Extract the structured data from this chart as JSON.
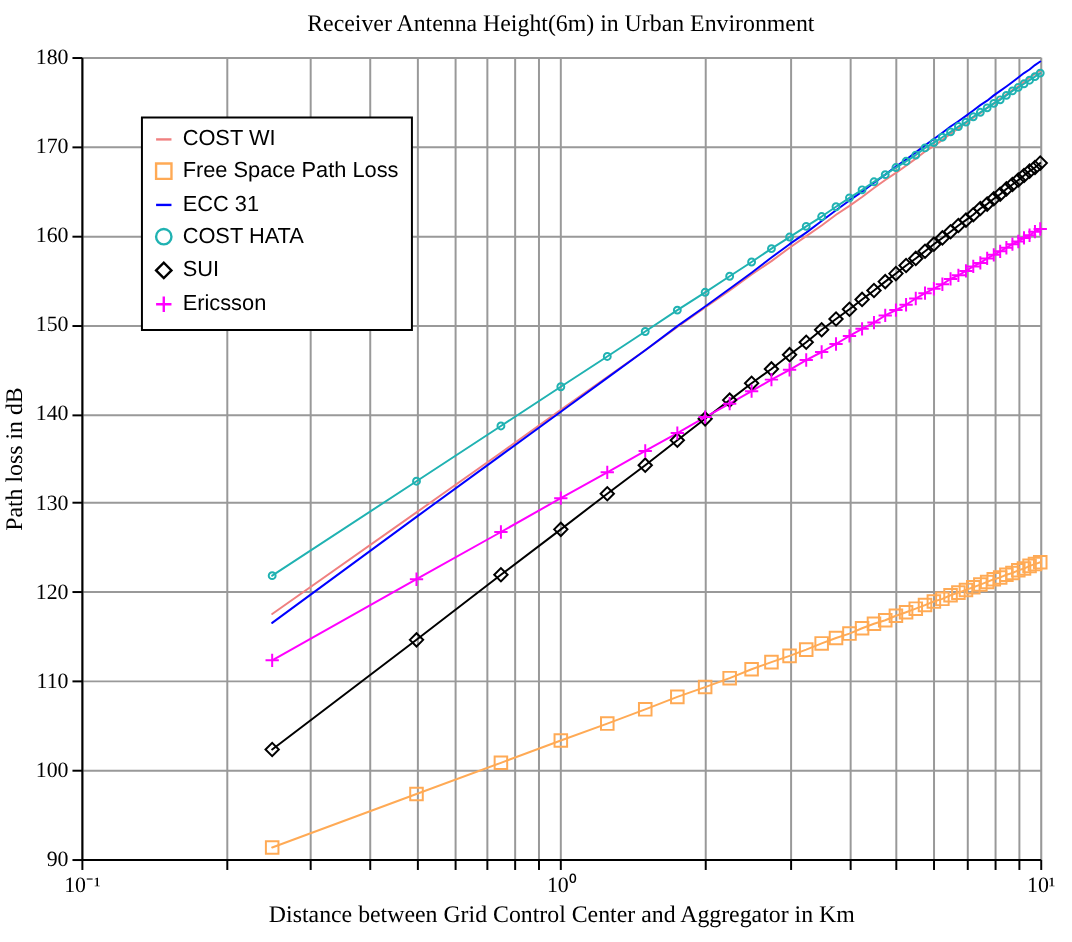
{
  "chart_data": {
    "type": "line",
    "title": "Receiver Antenna Height(6m) in Urban Environment",
    "xlabel": "Distance between Grid Control Center and Aggregator in Km",
    "ylabel": "Path loss in dB",
    "x": [
      0.25,
      0.5,
      0.75,
      1,
      1.25,
      1.5,
      1.75,
      2,
      2.25,
      2.5,
      2.75,
      3,
      3.25,
      3.5,
      3.75,
      4,
      4.25,
      4.5,
      4.75,
      5,
      5.25,
      5.5,
      5.75,
      6,
      6.25,
      6.5,
      6.75,
      7,
      7.25,
      7.5,
      7.75,
      8,
      8.25,
      8.5,
      8.75,
      9,
      9.25,
      9.5,
      9.75,
      10
    ],
    "series": [
      {
        "name": "COST WI",
        "color": "#f08080",
        "marker": "none",
        "values": [
          117.5,
          128.9,
          135.6,
          140.4,
          144.1,
          147.1,
          149.7,
          151.9,
          153.8,
          155.6,
          157.1,
          158.6,
          159.9,
          161.1,
          162.3,
          163.3,
          164.3,
          165.3,
          166.2,
          167.0,
          167.8,
          168.6,
          169.4,
          170.0,
          170.7,
          171.4,
          172.0,
          172.6,
          173.2,
          173.7,
          174.3,
          174.8,
          175.3,
          175.8,
          176.3,
          176.7,
          177.2,
          177.7,
          178.1,
          178.5
        ]
      },
      {
        "name": "Free Space Path Loss",
        "color": "#ffaa55",
        "marker": "square",
        "values": [
          91.3,
          97.3,
          100.8,
          103.3,
          105.2,
          106.8,
          108.2,
          109.3,
          110.3,
          111.3,
          112.1,
          112.8,
          113.5,
          114.2,
          114.8,
          115.3,
          115.9,
          116.4,
          116.8,
          117.3,
          117.7,
          118.1,
          118.5,
          118.9,
          119.2,
          119.6,
          119.9,
          120.2,
          120.5,
          120.8,
          121.1,
          121.4,
          121.6,
          121.9,
          122.1,
          122.4,
          122.6,
          122.9,
          123.1,
          123.3
        ]
      },
      {
        "name": "ECC 31",
        "color": "#0000ff",
        "marker": "none",
        "values": [
          116.5,
          128.4,
          135.3,
          140.2,
          144.0,
          147.1,
          149.8,
          152.0,
          154.0,
          155.8,
          157.5,
          159.0,
          160.3,
          161.6,
          162.8,
          163.9,
          164.9,
          165.9,
          166.8,
          167.7,
          168.5,
          169.3,
          170.1,
          170.8,
          171.5,
          172.2,
          172.8,
          173.4,
          174.0,
          174.6,
          175.1,
          175.7,
          176.2,
          176.7,
          177.2,
          177.7,
          178.2,
          178.6,
          179.1,
          179.5
        ]
      },
      {
        "name": "COST HATA",
        "color": "#20b2b2",
        "marker": "circle",
        "values": [
          121.8,
          132.4,
          138.6,
          143.0,
          146.4,
          149.2,
          151.6,
          153.6,
          155.4,
          157.0,
          158.5,
          159.8,
          161.0,
          162.1,
          163.2,
          164.2,
          165.1,
          166.0,
          166.8,
          167.6,
          168.3,
          169.0,
          169.8,
          170.4,
          171.0,
          171.6,
          172.2,
          172.7,
          173.3,
          173.8,
          174.3,
          174.8,
          175.2,
          175.7,
          176.2,
          176.6,
          177.0,
          177.4,
          177.8,
          178.2
        ]
      },
      {
        "name": "SUI",
        "color": "#000000",
        "marker": "diamond",
        "values": [
          102.3,
          114.6,
          121.9,
          127.0,
          131.0,
          134.2,
          137.0,
          139.4,
          141.5,
          143.4,
          145.0,
          146.6,
          148.0,
          149.4,
          150.6,
          151.7,
          152.8,
          153.8,
          154.8,
          155.7,
          156.6,
          157.4,
          158.2,
          159.0,
          159.7,
          160.4,
          161.1,
          161.7,
          162.3,
          163.0,
          163.5,
          164.1,
          164.6,
          165.2,
          165.7,
          166.2,
          166.7,
          167.2,
          167.6,
          168.1
        ]
      },
      {
        "name": "Ericsson",
        "color": "#ff00ff",
        "marker": "cross",
        "values": [
          112.3,
          121.4,
          126.7,
          130.5,
          133.4,
          135.8,
          137.8,
          139.6,
          141.1,
          142.5,
          143.8,
          144.9,
          146.0,
          146.9,
          147.8,
          148.7,
          149.5,
          150.2,
          151.0,
          151.6,
          152.2,
          152.9,
          153.5,
          154.0,
          154.5,
          155.1,
          155.5,
          156.0,
          156.5,
          156.9,
          157.4,
          157.8,
          158.2,
          158.6,
          159.0,
          159.3,
          159.7,
          160.0,
          160.4,
          160.7
        ]
      }
    ],
    "log": "x",
    "xlim": [
      0.1,
      10
    ],
    "xticks": [
      {
        "value": 0.1,
        "label": "10⁻¹"
      },
      {
        "value": 0.2,
        "label": null
      },
      {
        "value": 0.3,
        "label": null
      },
      {
        "value": 0.4,
        "label": null
      },
      {
        "value": 0.5,
        "label": null
      },
      {
        "value": 0.6,
        "label": null
      },
      {
        "value": 0.7,
        "label": null
      },
      {
        "value": 0.8,
        "label": null
      },
      {
        "value": 0.9,
        "label": null
      },
      {
        "value": 1,
        "label": "10⁰"
      },
      {
        "value": 2,
        "label": null
      },
      {
        "value": 3,
        "label": null
      },
      {
        "value": 4,
        "label": null
      },
      {
        "value": 5,
        "label": null
      },
      {
        "value": 6,
        "label": null
      },
      {
        "value": 7,
        "label": null
      },
      {
        "value": 8,
        "label": null
      },
      {
        "value": 9,
        "label": null
      },
      {
        "value": 10,
        "label": "10¹"
      }
    ],
    "ylim": [
      90,
      180
    ],
    "yticks": [
      90,
      100,
      110,
      120,
      130,
      140,
      150,
      160,
      170,
      180
    ],
    "grid": true,
    "legend": "top left",
    "line_style": "solid"
  }
}
